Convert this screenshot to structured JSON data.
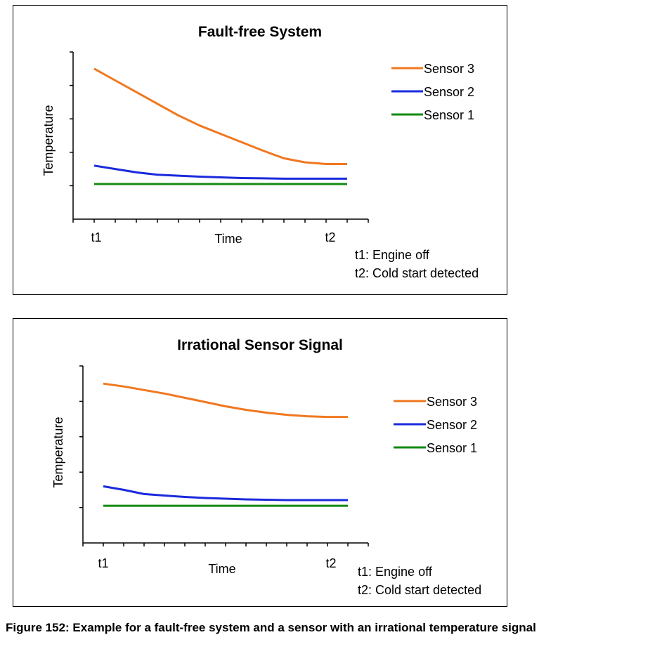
{
  "chart_data": [
    {
      "type": "line",
      "title": "Fault-free System",
      "xlabel": "Time",
      "ylabel": "Temperature",
      "x_tick_labels": [
        "t1",
        "t2"
      ],
      "x": [
        1,
        2,
        3,
        4,
        5,
        6,
        7,
        8,
        9,
        10,
        11,
        12,
        13
      ],
      "xlim": [
        0,
        14
      ],
      "ylim": [
        0,
        5
      ],
      "y_ticks": [
        1,
        2,
        3,
        4,
        5
      ],
      "legend_position": "right",
      "series": [
        {
          "name": "Sensor 3",
          "color": "#f07820",
          "values": [
            4.5,
            4.15,
            3.8,
            3.45,
            3.1,
            2.8,
            2.55,
            2.3,
            2.05,
            1.82,
            1.7,
            1.65,
            1.65
          ]
        },
        {
          "name": "Sensor 2",
          "color": "#1a2adc",
          "values": [
            1.6,
            1.5,
            1.4,
            1.33,
            1.3,
            1.27,
            1.25,
            1.23,
            1.22,
            1.21,
            1.21,
            1.21,
            1.21
          ]
        },
        {
          "name": "Sensor 1",
          "color": "#138a13",
          "values": [
            1.05,
            1.05,
            1.05,
            1.05,
            1.05,
            1.05,
            1.05,
            1.05,
            1.05,
            1.05,
            1.05,
            1.05,
            1.05
          ]
        }
      ],
      "notes": [
        "t1: Engine off",
        "t2: Cold start detected"
      ]
    },
    {
      "type": "line",
      "title": "Irrational Sensor Signal",
      "xlabel": "Time",
      "ylabel": "Temperature",
      "x_tick_labels": [
        "t1",
        "t2"
      ],
      "x": [
        1,
        2,
        3,
        4,
        5,
        6,
        7,
        8,
        9,
        10,
        11,
        12,
        13
      ],
      "xlim": [
        0,
        14
      ],
      "ylim": [
        0,
        5
      ],
      "y_ticks": [
        1,
        2,
        3,
        4,
        5
      ],
      "legend_position": "right",
      "series": [
        {
          "name": "Sensor 3",
          "color": "#f07820",
          "values": [
            4.5,
            4.42,
            4.32,
            4.22,
            4.1,
            3.98,
            3.86,
            3.76,
            3.68,
            3.62,
            3.58,
            3.56,
            3.56
          ]
        },
        {
          "name": "Sensor 2",
          "color": "#1a2adc",
          "values": [
            1.6,
            1.5,
            1.38,
            1.34,
            1.3,
            1.27,
            1.25,
            1.23,
            1.22,
            1.21,
            1.21,
            1.21,
            1.21
          ]
        },
        {
          "name": "Sensor 1",
          "color": "#138a13",
          "values": [
            1.05,
            1.05,
            1.05,
            1.05,
            1.05,
            1.05,
            1.05,
            1.05,
            1.05,
            1.05,
            1.05,
            1.05,
            1.05
          ]
        }
      ],
      "notes": [
        "t1: Engine off",
        "t2: Cold start detected"
      ]
    }
  ],
  "figure_caption": "Figure 152: Example for a fault-free system and a sensor with an irrational temperature signal"
}
